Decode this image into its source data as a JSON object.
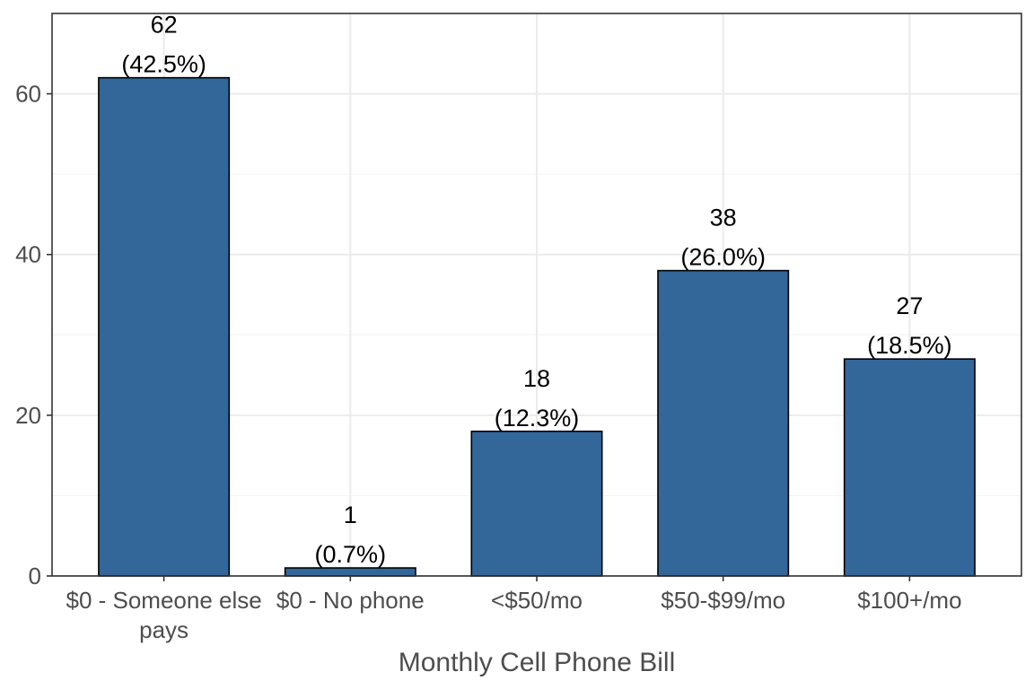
{
  "chart_data": {
    "type": "bar",
    "title": "",
    "xlabel": "Monthly Cell Phone Bill",
    "ylabel": "",
    "categories": [
      [
        "$0 - Someone else",
        "pays"
      ],
      [
        "$0 - No phone"
      ],
      [
        "<$50/mo"
      ],
      [
        "$50-$99/mo"
      ],
      [
        "$100+/mo"
      ]
    ],
    "values": [
      62,
      1,
      18,
      38,
      27
    ],
    "labels": [
      [
        "62",
        "(42.5%)"
      ],
      [
        "1",
        "(0.7%)"
      ],
      [
        "18",
        "(12.3%)"
      ],
      [
        "38",
        "(26.0%)"
      ],
      [
        "27",
        "(18.5%)"
      ]
    ],
    "ylim": [
      0,
      70
    ],
    "yticks": [
      0,
      20,
      40,
      60
    ],
    "grid": true,
    "legend": "none",
    "colors": {
      "bar_fill": "#336699",
      "bar_stroke": "#000000",
      "grid_major": "#ebebeb",
      "grid_minor": "#f5f5f5",
      "panel_border": "#333333"
    }
  }
}
